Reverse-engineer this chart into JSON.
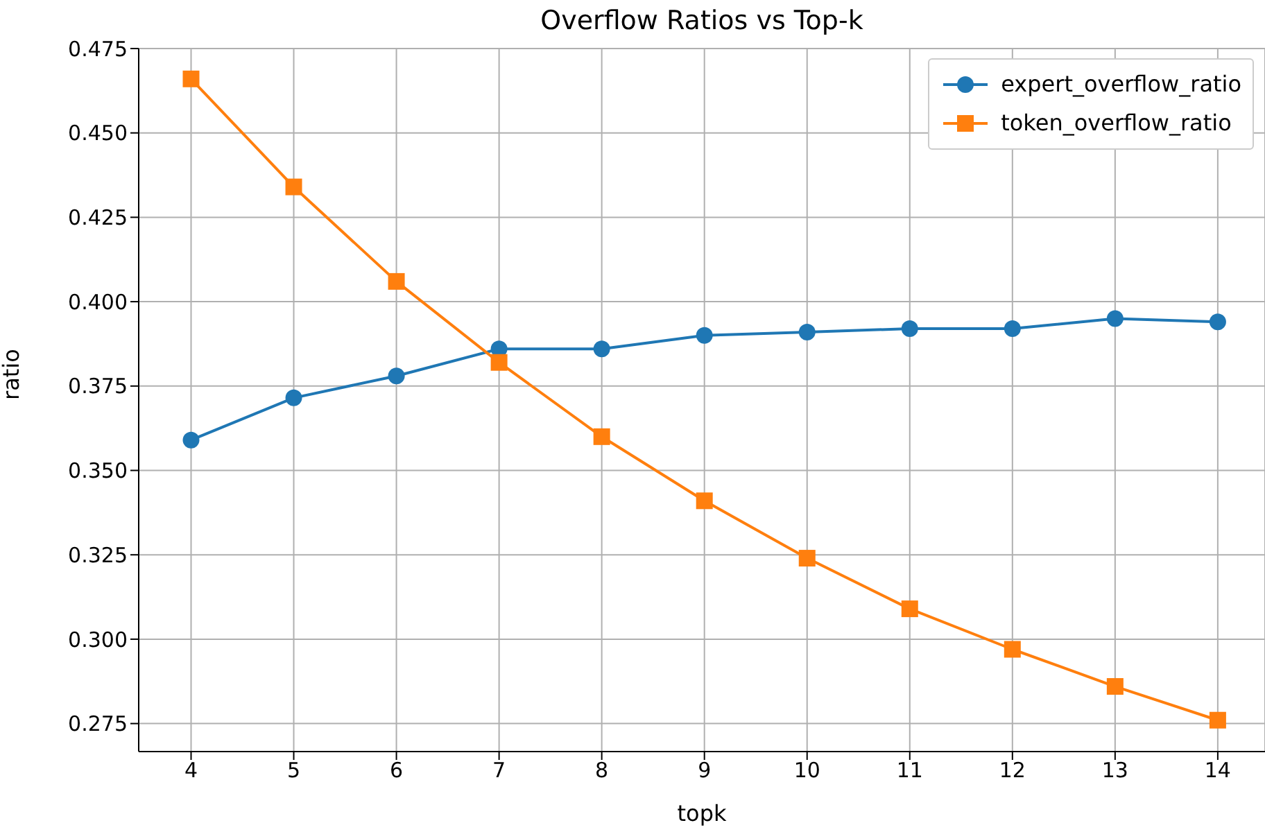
{
  "chart_data": {
    "type": "line",
    "title": "Overflow Ratios vs Top-k",
    "xlabel": "topk",
    "ylabel": "ratio",
    "x": [
      4,
      5,
      6,
      7,
      8,
      9,
      10,
      11,
      12,
      13,
      14
    ],
    "series": [
      {
        "name": "expert_overflow_ratio",
        "color": "#1f77b4",
        "marker": "circle",
        "values": [
          0.359,
          0.3715,
          0.378,
          0.386,
          0.386,
          0.39,
          0.391,
          0.392,
          0.392,
          0.395,
          0.394
        ]
      },
      {
        "name": "token_overflow_ratio",
        "color": "#ff7f0e",
        "marker": "square",
        "values": [
          0.466,
          0.434,
          0.406,
          0.382,
          0.36,
          0.341,
          0.324,
          0.309,
          0.297,
          0.286,
          0.276
        ]
      }
    ],
    "xlim": [
      3.49,
      14.46
    ],
    "xticks": [
      4,
      5,
      6,
      7,
      8,
      9,
      10,
      11,
      12,
      13,
      14
    ],
    "ylim": [
      0.2667,
      0.475
    ],
    "yticks": [
      0.275,
      {
        "value": 0.3,
        "label": "0.300"
      },
      0.325,
      {
        "value": 0.35,
        "label": "0.350"
      },
      0.375,
      {
        "value": 0.4,
        "label": "0.400"
      },
      0.425,
      {
        "value": 0.45,
        "label": "0.450"
      },
      0.475
    ],
    "grid": true,
    "legend": "top right",
    "line_style": "solid"
  }
}
